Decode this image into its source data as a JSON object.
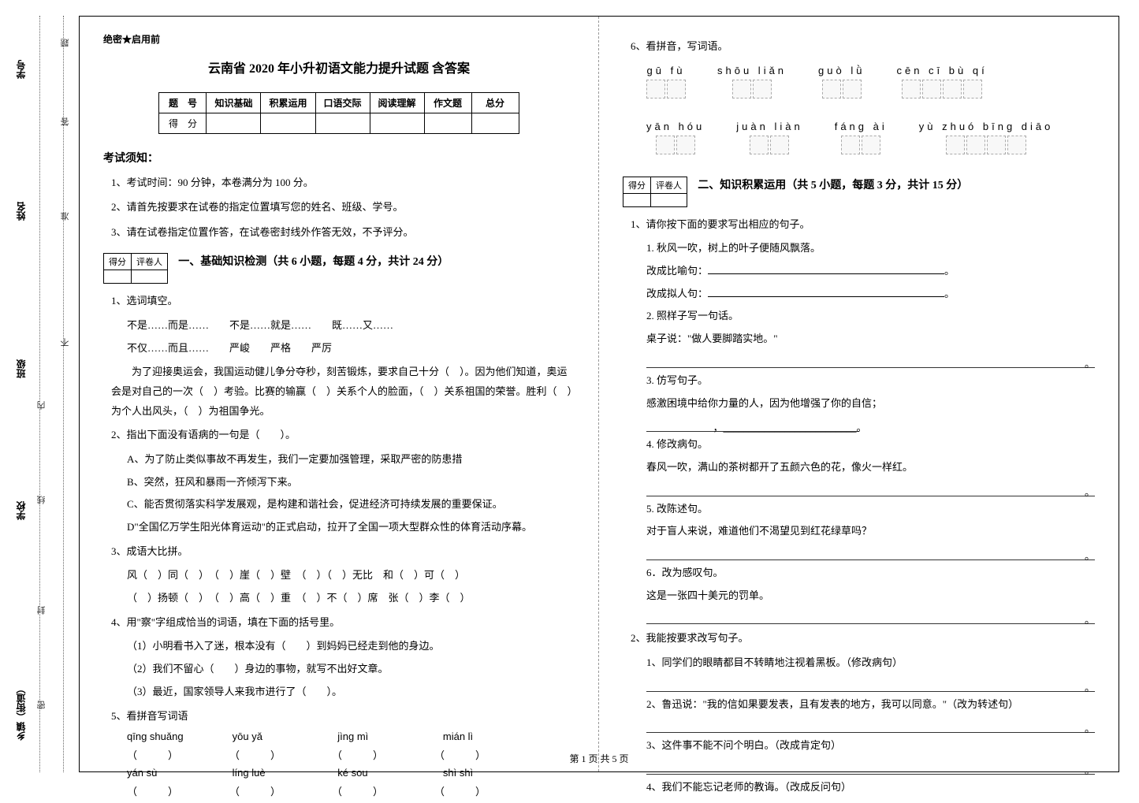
{
  "binding": {
    "labels": [
      "乡镇（街道）",
      "学校",
      "班级",
      "姓名",
      "学号"
    ],
    "hints": [
      "密",
      "封",
      "线",
      "内",
      "不",
      "准",
      "答",
      "题"
    ]
  },
  "secret": "绝密★启用前",
  "title": "云南省 2020 年小升初语文能力提升试题 含答案",
  "score_table": {
    "headers": [
      "题　号",
      "知识基础",
      "积累运用",
      "口语交际",
      "阅读理解",
      "作文题",
      "总分"
    ],
    "row_label": "得　分"
  },
  "notice_title": "考试须知：",
  "notices": [
    "1、考试时间：90 分钟，本卷满分为 100 分。",
    "2、请首先按要求在试卷的指定位置填写您的姓名、班级、学号。",
    "3、请在试卷指定位置作答，在试卷密封线外作答无效，不予评分。"
  ],
  "score_box": {
    "c1": "得分",
    "c2": "评卷人"
  },
  "section1": {
    "heading": "一、基础知识检测（共 6 小题，每题 4 分，共计 24 分）",
    "q1": "1、选词填空。",
    "q1_lines": [
      "不是……而是……　　不是……就是……　　既……又……",
      "不仅……而且……　　严峻　　严格　　严厉",
      "　　为了迎接奥运会，我国运动健儿争分夺秒，刻苦锻炼，要求自己十分（　）。因为他们知道，奥运会是对自己的一次（　）考验。比赛的输赢（　）关系个人的脸面，（　）关系祖国的荣誉。胜利（　）为个人出风头，（　）为祖国争光。"
    ],
    "q2": "2、指出下面没有语病的一句是（　　）。",
    "q2_opts": [
      "A、为了防止类似事故不再发生，我们一定要加强管理，采取严密的防患措",
      "B、突然，狂风和暴雨一齐倾泻下来。",
      "C、能否贯彻落实科学发展观，是构建和谐社会，促进经济可持续发展的重要保证。",
      "D\"全国亿万学生阳光体育运动\"的正式启动，拉开了全国一项大型群众性的体育活动序幕。"
    ],
    "q3": "3、成语大比拼。",
    "q3_lines": [
      "风（　）同（　）　（　）崖（　）壁　（　）（　）无比　和（　）可（　）",
      "（　）扬顿（　）　（　）高（　）重　（　）不（　）席　张（　）李（　）"
    ],
    "q4": "4、用\"察\"字组成恰当的词语，填在下面的括号里。",
    "q4_items": [
      "（1）小明看书入了迷，根本没有（　　）到妈妈已经走到他的身边。",
      "（2）我们不留心（　　）身边的事物，就写不出好文章。",
      "（3）最近，国家领导人来我市进行了（　　）。"
    ],
    "q5": "5、看拼音写词语",
    "q5_pinyin": [
      "qīng shuǎng",
      "yōu yǎ",
      "jìng mì",
      "mián lì"
    ],
    "q5_pinyin2": [
      "yán sù",
      "líng luè",
      "ké sou",
      "shì shì"
    ]
  },
  "section_right": {
    "q6": "6、看拼音，写词语。",
    "grid_row1": [
      {
        "py": "gū  fù",
        "n": 2
      },
      {
        "py": "shōu liǎn",
        "n": 2
      },
      {
        "py": "guò  lǜ",
        "n": 2
      },
      {
        "py": "cēn  cī  bù  qí",
        "n": 4
      }
    ],
    "grid_row2": [
      {
        "py": "yān hóu",
        "n": 2
      },
      {
        "py": "juàn liàn",
        "n": 2
      },
      {
        "py": "fáng ài",
        "n": 2
      },
      {
        "py": "yù zhuó bīng diāo",
        "n": 4
      }
    ]
  },
  "section2": {
    "heading": "二、知识积累运用（共 5 小题，每题 3 分，共计 15 分）",
    "q1": "1、请你按下面的要求写出相应的句子。",
    "q1_items": [
      {
        "label": "1. 秋风一吹，树上的叶子便随风飘落。",
        "sub": [
          "改成比喻句：",
          "改成拟人句："
        ]
      },
      {
        "label": "2. 照样子写一句话。",
        "sub": [
          "桌子说：\"做人要脚踏实地。\""
        ]
      },
      {
        "label": "3. 仿写句子。",
        "sub": [
          "感激困境中给你力量的人，因为他增强了你的自信；"
        ]
      },
      {
        "label": "4. 修改病句。",
        "sub": [
          "春风一吹，满山的茶树都开了五颜六色的花，像火一样红。"
        ]
      },
      {
        "label": "5. 改陈述句。",
        "sub": [
          "对于盲人来说，难道他们不渴望见到红花绿草吗？"
        ]
      },
      {
        "label": "6．改为感叹句。",
        "sub": [
          "这是一张四十美元的罚单。"
        ]
      }
    ],
    "q2": "2、我能按要求改写句子。",
    "q2_items": [
      "1、同学们的眼睛都目不转睛地注视着黑板。（修改病句）",
      "2、鲁迅说：\"我的信如果要发表，且有发表的地方，我可以同意。\"（改为转述句）",
      "3、这件事不能不问个明白。（改成肯定句）",
      "4、我们不能忘记老师的教诲。（改成反问句）"
    ]
  },
  "footer": "第 1 页 共 5 页"
}
